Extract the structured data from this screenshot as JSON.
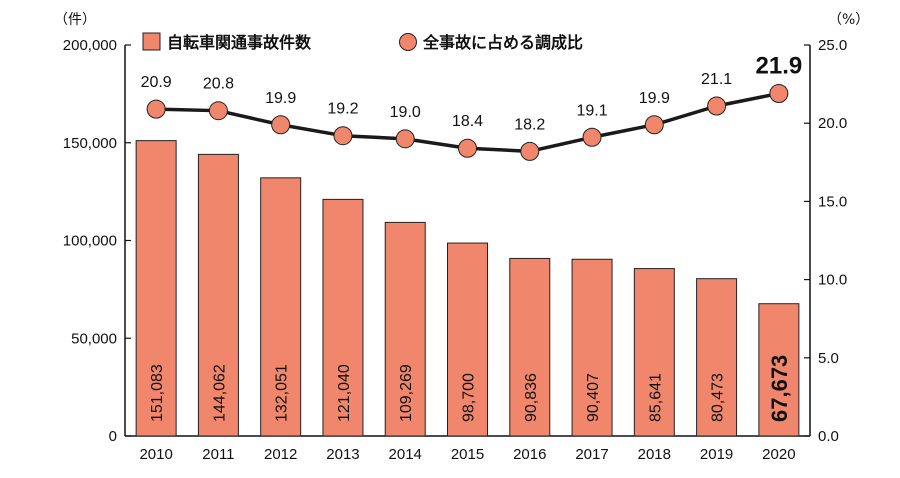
{
  "chart_data": {
    "type": "bar+line",
    "title": "",
    "categories": [
      "2010",
      "2011",
      "2012",
      "2013",
      "2014",
      "2015",
      "2016",
      "2017",
      "2018",
      "2019",
      "2020"
    ],
    "series": [
      {
        "name": "自転車関通事故件数",
        "type": "bar",
        "axis": "left",
        "values": [
          151083,
          144062,
          132051,
          121040,
          109269,
          98700,
          90836,
          90407,
          85641,
          80473,
          67673
        ],
        "labels": [
          "151,083",
          "144,062",
          "132,051",
          "121,040",
          "109,269",
          "98,700",
          "90,836",
          "90,407",
          "85,641",
          "80,473",
          "67,673"
        ],
        "color": "#f0866b"
      },
      {
        "name": "全事故に占める調成比",
        "type": "line",
        "axis": "right",
        "values": [
          20.9,
          20.8,
          19.9,
          19.2,
          19.0,
          18.4,
          18.2,
          19.1,
          19.9,
          21.1,
          21.9
        ],
        "labels": [
          "20.9",
          "20.8",
          "19.9",
          "19.2",
          "19.0",
          "18.4",
          "18.2",
          "19.1",
          "19.9",
          "21.1",
          "21.9"
        ],
        "color": "#f0866b"
      }
    ],
    "y_left": {
      "unit_label": "（件）",
      "range": [
        0,
        200000
      ],
      "ticks": [
        "0",
        "50,000",
        "100,000",
        "150,000",
        "200,000"
      ]
    },
    "y_right": {
      "unit_label": "（%）",
      "range": [
        0,
        25
      ],
      "ticks": [
        "0.0",
        "5.0",
        "10.0",
        "15.0",
        "20.0",
        "25.0"
      ]
    },
    "grid": false,
    "legend_position": "top"
  }
}
